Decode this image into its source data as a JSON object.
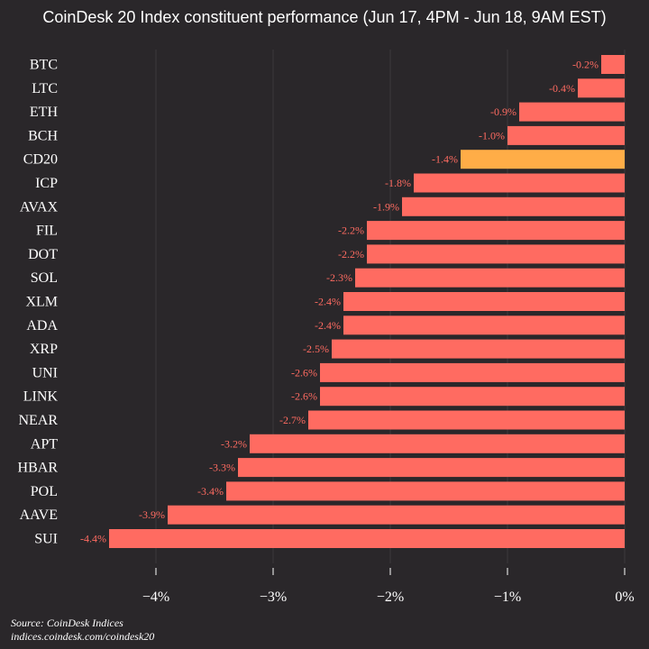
{
  "title": "CoinDesk 20 Index constituent performance (Jun 17, 4PM - Jun 18, 9AM EST)",
  "source": {
    "line1": "Source: CoinDesk Indices",
    "line2": "indices.coindesk.com/coindesk20"
  },
  "colors": {
    "background": "#2a272a",
    "bar": "#ff6b61",
    "highlight_bar": "#ffad47",
    "value_label": "#ff6b61",
    "text": "#ffffff",
    "grid": "#3c393c"
  },
  "chart_data": {
    "type": "bar",
    "orientation": "horizontal",
    "title": "CoinDesk 20 Index constituent performance (Jun 17, 4PM - Jun 18, 9AM EST)",
    "categories": [
      "BTC",
      "LTC",
      "ETH",
      "BCH",
      "CD20",
      "ICP",
      "AVAX",
      "FIL",
      "DOT",
      "SOL",
      "XLM",
      "ADA",
      "XRP",
      "UNI",
      "LINK",
      "NEAR",
      "APT",
      "HBAR",
      "POL",
      "AAVE",
      "SUI"
    ],
    "values": [
      -0.2,
      -0.4,
      -0.9,
      -1.0,
      -1.4,
      -1.8,
      -1.9,
      -2.2,
      -2.2,
      -2.3,
      -2.4,
      -2.4,
      -2.5,
      -2.6,
      -2.6,
      -2.7,
      -3.2,
      -3.3,
      -3.4,
      -3.9,
      -4.4
    ],
    "value_labels": [
      "-0.2%",
      "-0.4%",
      "-0.9%",
      "-1.0%",
      "-1.4%",
      "-1.8%",
      "-1.9%",
      "-2.2%",
      "-2.2%",
      "-2.3%",
      "-2.4%",
      "-2.4%",
      "-2.5%",
      "-2.6%",
      "-2.6%",
      "-2.7%",
      "-3.2%",
      "-3.3%",
      "-3.4%",
      "-3.9%",
      "-4.4%"
    ],
    "highlight": "CD20",
    "xlim": [
      -4.75,
      0
    ],
    "xticks": [
      -4,
      -3,
      -2,
      -1,
      0
    ],
    "xtick_labels": [
      "−4%",
      "−3%",
      "−2%",
      "−1%",
      "0%"
    ],
    "xlabel": "",
    "ylabel": "",
    "grid": true
  }
}
